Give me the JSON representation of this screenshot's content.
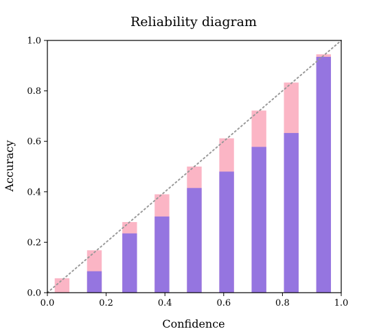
{
  "chart_data": {
    "type": "bar",
    "title": "Reliability diagram",
    "xlabel": "Confidence",
    "ylabel": "Accuracy",
    "xlim": [
      0,
      1
    ],
    "ylim": [
      0,
      1
    ],
    "x_ticks": [
      "0.0",
      "0.2",
      "0.4",
      "0.6",
      "0.8",
      "1.0"
    ],
    "y_ticks": [
      "0.0",
      "0.2",
      "0.4",
      "0.6",
      "0.8",
      "1.0"
    ],
    "grid": false,
    "legend": false,
    "bar_width": 0.05,
    "x": [
      0.05,
      0.16,
      0.28,
      0.39,
      0.5,
      0.61,
      0.72,
      0.83,
      0.94
    ],
    "series": [
      {
        "role": "accuracy",
        "color": "#9575e0",
        "values": [
          0.0,
          0.085,
          0.235,
          0.302,
          0.415,
          0.48,
          0.578,
          0.633,
          0.935
        ]
      },
      {
        "role": "gap",
        "color": "#fbb5c5",
        "values": [
          0.057,
          0.168,
          0.28,
          0.39,
          0.5,
          0.612,
          0.722,
          0.833,
          0.945
        ]
      }
    ],
    "reference_line": {
      "style": "dotted",
      "color": "#999999",
      "points": [
        [
          0,
          0
        ],
        [
          1,
          1
        ]
      ]
    }
  }
}
